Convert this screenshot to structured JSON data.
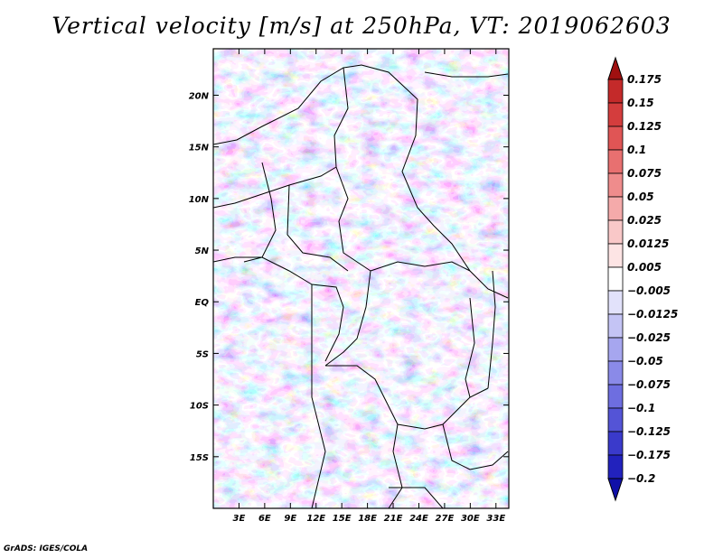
{
  "title": "Vertical velocity [m/s] at 250hPa, VT: 2019062603",
  "credit": "GrADS: IGES/COLA",
  "map": {
    "lon_range": [
      0,
      34.5
    ],
    "lat_range": [
      -20,
      24.5
    ],
    "lat_ticks": [
      {
        "value": 20,
        "label": "20N"
      },
      {
        "value": 15,
        "label": "15N"
      },
      {
        "value": 10,
        "label": "10N"
      },
      {
        "value": 5,
        "label": "5N"
      },
      {
        "value": 0,
        "label": "EQ"
      },
      {
        "value": -5,
        "label": "5S"
      },
      {
        "value": -10,
        "label": "10S"
      },
      {
        "value": -15,
        "label": "15S"
      }
    ],
    "lon_ticks": [
      {
        "value": 3,
        "label": "3E"
      },
      {
        "value": 6,
        "label": "6E"
      },
      {
        "value": 9,
        "label": "9E"
      },
      {
        "value": 12,
        "label": "12E"
      },
      {
        "value": 15,
        "label": "15E"
      },
      {
        "value": 18,
        "label": "18E"
      },
      {
        "value": 21,
        "label": "21E"
      },
      {
        "value": 24,
        "label": "24E"
      },
      {
        "value": 27,
        "label": "27E"
      },
      {
        "value": 30,
        "label": "30E"
      },
      {
        "value": 33,
        "label": "33E"
      }
    ]
  },
  "colorbar": {
    "levels": [
      {
        "label": "0.175",
        "color": "#b01818"
      },
      {
        "label": "0.15",
        "color": "#c42a2a"
      },
      {
        "label": "0.125",
        "color": "#d43d3d"
      },
      {
        "label": "0.1",
        "color": "#e05555"
      },
      {
        "label": "0.075",
        "color": "#e87070"
      },
      {
        "label": "0.05",
        "color": "#ef8c8c"
      },
      {
        "label": "0.025",
        "color": "#f5aaaa"
      },
      {
        "label": "0.0125",
        "color": "#f9c8c8"
      },
      {
        "label": "0.005",
        "color": "#fde4e4"
      },
      {
        "label": "−0.005",
        "color": "#ffffff"
      },
      {
        "label": "−0.0125",
        "color": "#e2e2fb"
      },
      {
        "label": "−0.025",
        "color": "#c4c4f5"
      },
      {
        "label": "−0.05",
        "color": "#a6a6ef"
      },
      {
        "label": "−0.075",
        "color": "#8a8ae8"
      },
      {
        "label": "−0.1",
        "color": "#6e6ee0"
      },
      {
        "label": "−0.125",
        "color": "#5454d6"
      },
      {
        "label": "−0.175",
        "color": "#3a3acb"
      },
      {
        "label": "−0.2",
        "color": "#2222bd"
      }
    ],
    "top_color": "#a01010",
    "bottom_color": "#1010a8"
  }
}
